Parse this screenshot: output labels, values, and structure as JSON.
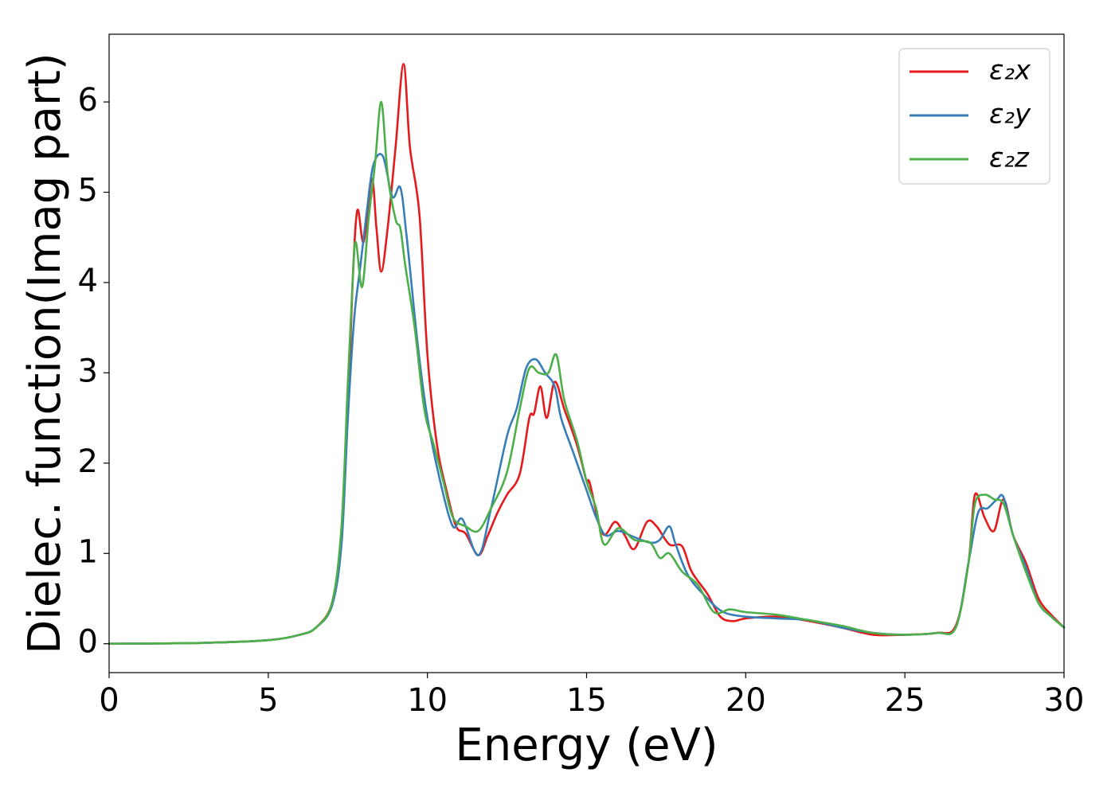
{
  "chart_data": {
    "type": "line",
    "title": "",
    "xlabel": "Energy (eV)",
    "ylabel": "Dielec. function(Imag part)",
    "xlim": [
      0,
      30
    ],
    "ylim": [
      -0.32,
      6.75
    ],
    "xticks": [
      0,
      5,
      10,
      15,
      20,
      25,
      30
    ],
    "yticks": [
      0,
      1,
      2,
      3,
      4,
      5,
      6
    ],
    "grid": false,
    "legend_position": "top-right",
    "series": [
      {
        "name": "ε₂x",
        "color": "#e41a1c",
        "points": [
          [
            0,
            0.0
          ],
          [
            3,
            0.01
          ],
          [
            5,
            0.04
          ],
          [
            6,
            0.1
          ],
          [
            6.5,
            0.18
          ],
          [
            7,
            0.45
          ],
          [
            7.3,
            1.2
          ],
          [
            7.5,
            2.6
          ],
          [
            7.65,
            4.0
          ],
          [
            7.8,
            4.8
          ],
          [
            8.0,
            4.45
          ],
          [
            8.25,
            5.15
          ],
          [
            8.4,
            4.6
          ],
          [
            8.55,
            4.12
          ],
          [
            8.75,
            4.6
          ],
          [
            9.0,
            5.5
          ],
          [
            9.25,
            6.42
          ],
          [
            9.45,
            5.5
          ],
          [
            9.75,
            4.75
          ],
          [
            10.0,
            3.2
          ],
          [
            10.3,
            2.2
          ],
          [
            10.6,
            1.7
          ],
          [
            10.9,
            1.3
          ],
          [
            11.2,
            1.22
          ],
          [
            11.6,
            0.98
          ],
          [
            11.9,
            1.2
          ],
          [
            12.2,
            1.45
          ],
          [
            12.5,
            1.65
          ],
          [
            12.9,
            1.88
          ],
          [
            13.2,
            2.5
          ],
          [
            13.35,
            2.55
          ],
          [
            13.55,
            2.85
          ],
          [
            13.75,
            2.5
          ],
          [
            14.0,
            2.9
          ],
          [
            14.3,
            2.6
          ],
          [
            14.7,
            2.2
          ],
          [
            15.0,
            1.8
          ],
          [
            15.1,
            1.78
          ],
          [
            15.5,
            1.22
          ],
          [
            15.9,
            1.35
          ],
          [
            16.2,
            1.2
          ],
          [
            16.5,
            1.05
          ],
          [
            16.9,
            1.35
          ],
          [
            17.2,
            1.3
          ],
          [
            17.6,
            1.1
          ],
          [
            18.0,
            1.08
          ],
          [
            18.3,
            0.8
          ],
          [
            18.8,
            0.55
          ],
          [
            19.2,
            0.3
          ],
          [
            19.6,
            0.25
          ],
          [
            20.0,
            0.28
          ],
          [
            21,
            0.3
          ],
          [
            22,
            0.25
          ],
          [
            23,
            0.18
          ],
          [
            24,
            0.1
          ],
          [
            25,
            0.1
          ],
          [
            26,
            0.12
          ],
          [
            26.6,
            0.2
          ],
          [
            27.0,
            0.9
          ],
          [
            27.2,
            1.65
          ],
          [
            27.5,
            1.4
          ],
          [
            27.8,
            1.25
          ],
          [
            28.1,
            1.6
          ],
          [
            28.4,
            1.2
          ],
          [
            28.8,
            0.9
          ],
          [
            29.2,
            0.5
          ],
          [
            29.6,
            0.32
          ],
          [
            30,
            0.18
          ]
        ]
      },
      {
        "name": "ε₂y",
        "color": "#377eb8",
        "points": [
          [
            0,
            0.0
          ],
          [
            3,
            0.01
          ],
          [
            5,
            0.04
          ],
          [
            6,
            0.1
          ],
          [
            6.5,
            0.18
          ],
          [
            7,
            0.42
          ],
          [
            7.3,
            1.1
          ],
          [
            7.5,
            2.5
          ],
          [
            7.7,
            3.6
          ],
          [
            7.9,
            4.2
          ],
          [
            8.1,
            4.8
          ],
          [
            8.3,
            5.3
          ],
          [
            8.6,
            5.4
          ],
          [
            8.9,
            4.95
          ],
          [
            9.15,
            5.05
          ],
          [
            9.35,
            4.5
          ],
          [
            9.7,
            3.3
          ],
          [
            10.0,
            2.5
          ],
          [
            10.4,
            1.8
          ],
          [
            10.8,
            1.3
          ],
          [
            11.1,
            1.38
          ],
          [
            11.6,
            0.98
          ],
          [
            12.0,
            1.5
          ],
          [
            12.5,
            2.3
          ],
          [
            12.8,
            2.6
          ],
          [
            13.1,
            3.05
          ],
          [
            13.4,
            3.15
          ],
          [
            13.7,
            3.0
          ],
          [
            14.0,
            2.85
          ],
          [
            14.2,
            2.5
          ],
          [
            14.6,
            2.1
          ],
          [
            15.0,
            1.7
          ],
          [
            15.3,
            1.4
          ],
          [
            15.6,
            1.2
          ],
          [
            16.0,
            1.25
          ],
          [
            16.5,
            1.18
          ],
          [
            17.0,
            1.12
          ],
          [
            17.3,
            1.15
          ],
          [
            17.6,
            1.3
          ],
          [
            17.8,
            1.1
          ],
          [
            18.2,
            0.75
          ],
          [
            18.8,
            0.5
          ],
          [
            19.3,
            0.35
          ],
          [
            20,
            0.3
          ],
          [
            21,
            0.28
          ],
          [
            22,
            0.26
          ],
          [
            23,
            0.18
          ],
          [
            24,
            0.12
          ],
          [
            25,
            0.1
          ],
          [
            26,
            0.12
          ],
          [
            26.6,
            0.18
          ],
          [
            27.0,
            0.9
          ],
          [
            27.3,
            1.45
          ],
          [
            27.6,
            1.5
          ],
          [
            27.9,
            1.6
          ],
          [
            28.1,
            1.62
          ],
          [
            28.4,
            1.2
          ],
          [
            28.8,
            0.85
          ],
          [
            29.2,
            0.45
          ],
          [
            29.6,
            0.3
          ],
          [
            30,
            0.18
          ]
        ]
      },
      {
        "name": "ε₂z",
        "color": "#4daf4a",
        "points": [
          [
            0,
            0.0
          ],
          [
            3,
            0.01
          ],
          [
            5,
            0.04
          ],
          [
            6,
            0.1
          ],
          [
            6.5,
            0.18
          ],
          [
            7,
            0.45
          ],
          [
            7.3,
            1.3
          ],
          [
            7.5,
            2.9
          ],
          [
            7.65,
            4.0
          ],
          [
            7.75,
            4.45
          ],
          [
            7.95,
            3.95
          ],
          [
            8.15,
            4.7
          ],
          [
            8.35,
            5.3
          ],
          [
            8.55,
            6.0
          ],
          [
            8.75,
            5.2
          ],
          [
            9.0,
            4.7
          ],
          [
            9.15,
            4.6
          ],
          [
            9.3,
            4.2
          ],
          [
            9.6,
            3.5
          ],
          [
            9.9,
            2.6
          ],
          [
            10.2,
            2.2
          ],
          [
            10.5,
            1.8
          ],
          [
            10.8,
            1.4
          ],
          [
            11.2,
            1.3
          ],
          [
            11.6,
            1.25
          ],
          [
            12.0,
            1.5
          ],
          [
            12.5,
            1.9
          ],
          [
            12.9,
            2.6
          ],
          [
            13.2,
            3.05
          ],
          [
            13.5,
            3.0
          ],
          [
            13.8,
            3.0
          ],
          [
            14.05,
            3.2
          ],
          [
            14.3,
            2.7
          ],
          [
            14.7,
            2.25
          ],
          [
            15.0,
            1.8
          ],
          [
            15.3,
            1.5
          ],
          [
            15.55,
            1.1
          ],
          [
            16.0,
            1.28
          ],
          [
            16.5,
            1.15
          ],
          [
            17.0,
            1.12
          ],
          [
            17.3,
            0.95
          ],
          [
            17.6,
            1.0
          ],
          [
            18.0,
            0.8
          ],
          [
            18.5,
            0.65
          ],
          [
            19.0,
            0.35
          ],
          [
            19.5,
            0.38
          ],
          [
            20,
            0.35
          ],
          [
            21,
            0.32
          ],
          [
            22,
            0.26
          ],
          [
            23,
            0.2
          ],
          [
            24,
            0.12
          ],
          [
            25,
            0.1
          ],
          [
            26,
            0.12
          ],
          [
            26.6,
            0.18
          ],
          [
            27.0,
            0.9
          ],
          [
            27.2,
            1.55
          ],
          [
            27.5,
            1.65
          ],
          [
            27.8,
            1.6
          ],
          [
            28.1,
            1.55
          ],
          [
            28.4,
            1.2
          ],
          [
            28.8,
            0.8
          ],
          [
            29.2,
            0.45
          ],
          [
            29.6,
            0.3
          ],
          [
            30,
            0.18
          ]
        ]
      }
    ]
  }
}
